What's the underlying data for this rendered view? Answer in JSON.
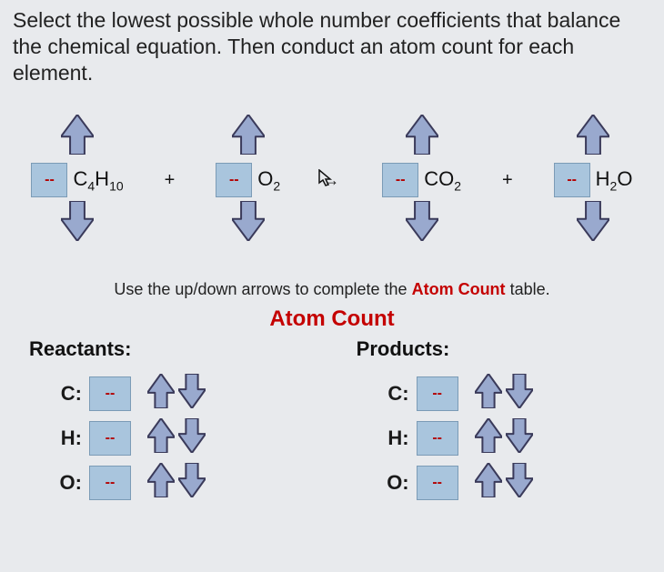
{
  "prompt": "Select the lowest possible whole number coefficients that balance the chemical equation. Then conduct an atom count for each element.",
  "equation": {
    "terms": [
      {
        "coeff": "--",
        "formula_html": "C<sub>4</sub>H<sub>10</sub>"
      },
      {
        "coeff": "--",
        "formula_html": "O<sub>2</sub>"
      },
      {
        "coeff": "--",
        "formula_html": "CO<sub>2</sub>"
      },
      {
        "coeff": "--",
        "formula_html": "H<sub>2</sub>O"
      }
    ],
    "plus": "+",
    "arrow": "→"
  },
  "hint_pre": "Use the up/down arrows to complete the ",
  "hint_red": "Atom Count",
  "hint_post": " table.",
  "section_title": "Atom Count",
  "reactants_label": "Reactants:",
  "products_label": "Products:",
  "elements": [
    {
      "label": "C:",
      "reactant_val": "--",
      "product_val": "--"
    },
    {
      "label": "H:",
      "reactant_val": "--",
      "product_val": "--"
    },
    {
      "label": "O:",
      "reactant_val": "--",
      "product_val": "--"
    }
  ],
  "placeholder": "--",
  "colors": {
    "box_bg": "#a9c5dd",
    "box_border": "#7b9bb6",
    "arrow_fill": "#99a9ce",
    "arrow_stroke": "#3a3a5a",
    "red": "#c40000",
    "page_bg": "#e8eaed"
  },
  "arrow_geom": {
    "big_w": 36,
    "big_h": 44,
    "mini_w": 30,
    "mini_h": 38
  }
}
